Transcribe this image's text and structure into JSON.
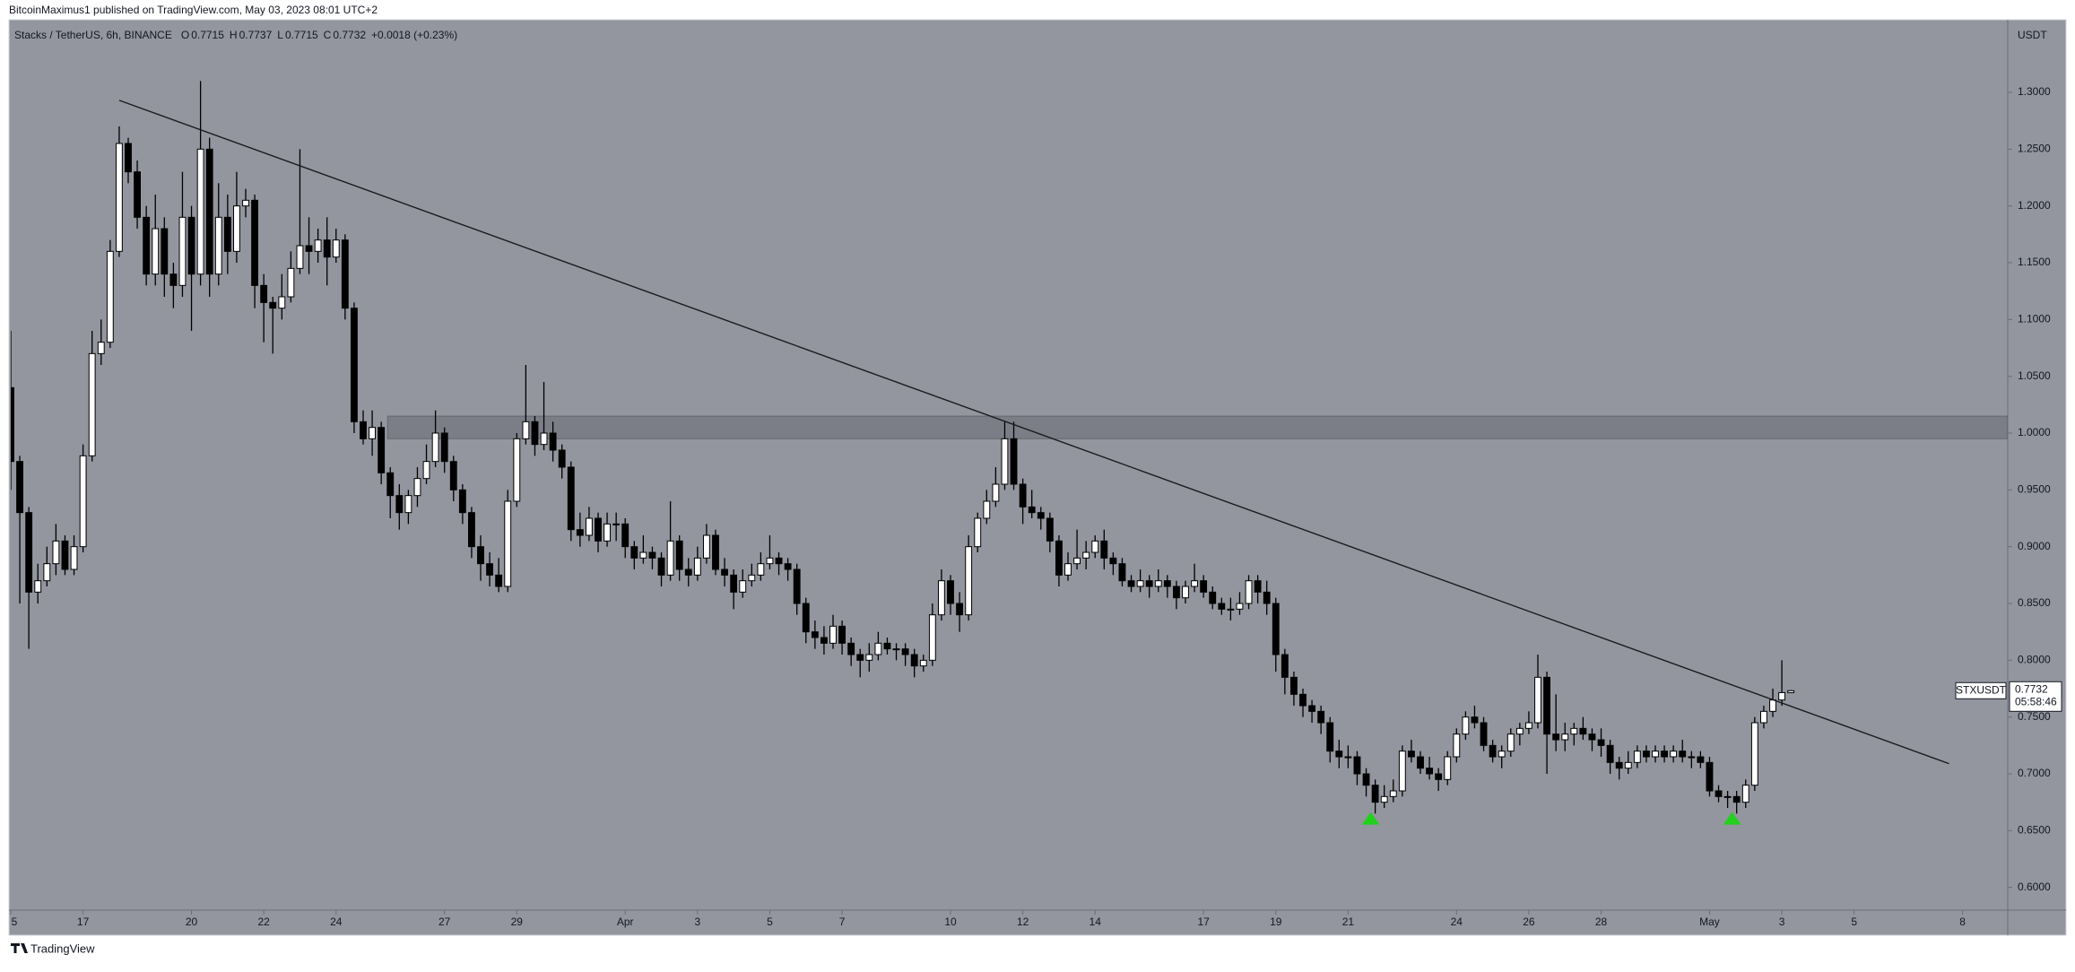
{
  "page": {
    "byline": "BitcoinMaximus1 published on TradingView.com, May 03, 2023 08:01 UTC+2",
    "brand": "TradingView"
  },
  "chart_data": {
    "type": "candlestick",
    "title": "Stacks / TetherUS, 6h, BINANCE",
    "ohlc_letters": [
      "O",
      "H",
      "L",
      "C"
    ],
    "change": "+0.0018 (+0.23%)",
    "currency": "USDT",
    "symbol": "STXUSDT",
    "countdown": "05:58:46",
    "up_color": "#ffffff",
    "down_color": "#000000",
    "background": "#93969e",
    "marker_color": "#22d11c",
    "candles": [
      [
        1.04,
        1.09,
        0.95,
        0.975
      ],
      [
        0.975,
        0.98,
        0.85,
        0.93
      ],
      [
        0.93,
        0.935,
        0.81,
        0.86
      ],
      [
        0.86,
        0.885,
        0.85,
        0.87
      ],
      [
        0.87,
        0.9,
        0.865,
        0.885
      ],
      [
        0.885,
        0.92,
        0.875,
        0.905
      ],
      [
        0.905,
        0.91,
        0.875,
        0.88
      ],
      [
        0.88,
        0.91,
        0.875,
        0.9
      ],
      [
        0.9,
        0.99,
        0.895,
        0.98
      ],
      [
        0.98,
        1.09,
        0.975,
        1.07
      ],
      [
        1.07,
        1.1,
        1.06,
        1.08
      ],
      [
        1.08,
        1.17,
        1.075,
        1.16
      ],
      [
        1.16,
        1.27,
        1.155,
        1.255
      ],
      [
        1.255,
        1.26,
        1.22,
        1.23
      ],
      [
        1.23,
        1.24,
        1.18,
        1.19
      ],
      [
        1.19,
        1.2,
        1.13,
        1.14
      ],
      [
        1.14,
        1.21,
        1.13,
        1.18
      ],
      [
        1.18,
        1.19,
        1.12,
        1.14
      ],
      [
        1.14,
        1.15,
        1.11,
        1.13
      ],
      [
        1.13,
        1.23,
        1.12,
        1.19
      ],
      [
        1.19,
        1.2,
        1.09,
        1.14
      ],
      [
        1.14,
        1.31,
        1.13,
        1.25
      ],
      [
        1.25,
        1.26,
        1.12,
        1.14
      ],
      [
        1.14,
        1.22,
        1.13,
        1.19
      ],
      [
        1.19,
        1.21,
        1.14,
        1.16
      ],
      [
        1.16,
        1.23,
        1.15,
        1.2
      ],
      [
        1.2,
        1.215,
        1.19,
        1.205
      ],
      [
        1.205,
        1.21,
        1.11,
        1.13
      ],
      [
        1.13,
        1.14,
        1.08,
        1.115
      ],
      [
        1.115,
        1.12,
        1.07,
        1.11
      ],
      [
        1.11,
        1.14,
        1.1,
        1.12
      ],
      [
        1.12,
        1.16,
        1.115,
        1.145
      ],
      [
        1.145,
        1.25,
        1.14,
        1.165
      ],
      [
        1.165,
        1.19,
        1.14,
        1.16
      ],
      [
        1.16,
        1.18,
        1.15,
        1.17
      ],
      [
        1.17,
        1.19,
        1.13,
        1.155
      ],
      [
        1.155,
        1.18,
        1.15,
        1.17
      ],
      [
        1.17,
        1.175,
        1.1,
        1.11
      ],
      [
        1.11,
        1.115,
        1.0,
        1.01
      ],
      [
        1.01,
        1.02,
        0.99,
        0.995
      ],
      [
        0.995,
        1.02,
        0.98,
        1.005
      ],
      [
        1.005,
        1.01,
        0.955,
        0.965
      ],
      [
        0.965,
        0.97,
        0.925,
        0.945
      ],
      [
        0.945,
        0.955,
        0.915,
        0.93
      ],
      [
        0.93,
        0.95,
        0.92,
        0.945
      ],
      [
        0.945,
        0.97,
        0.935,
        0.96
      ],
      [
        0.96,
        0.99,
        0.955,
        0.975
      ],
      [
        0.975,
        1.02,
        0.97,
        1.0
      ],
      [
        1.0,
        1.005,
        0.965,
        0.975
      ],
      [
        0.975,
        0.98,
        0.94,
        0.95
      ],
      [
        0.95,
        0.955,
        0.92,
        0.93
      ],
      [
        0.93,
        0.935,
        0.89,
        0.9
      ],
      [
        0.9,
        0.91,
        0.87,
        0.885
      ],
      [
        0.885,
        0.895,
        0.865,
        0.875
      ],
      [
        0.875,
        0.89,
        0.86,
        0.865
      ],
      [
        0.865,
        0.95,
        0.86,
        0.94
      ],
      [
        0.94,
        1.0,
        0.935,
        0.995
      ],
      [
        0.995,
        1.06,
        0.99,
        1.01
      ],
      [
        1.01,
        1.015,
        0.98,
        0.99
      ],
      [
        0.99,
        1.045,
        0.985,
        1.0
      ],
      [
        1.0,
        1.01,
        0.975,
        0.985
      ],
      [
        0.985,
        0.99,
        0.96,
        0.97
      ],
      [
        0.97,
        0.975,
        0.905,
        0.915
      ],
      [
        0.915,
        0.93,
        0.9,
        0.91
      ],
      [
        0.91,
        0.935,
        0.905,
        0.925
      ],
      [
        0.925,
        0.93,
        0.895,
        0.905
      ],
      [
        0.905,
        0.93,
        0.9,
        0.92
      ],
      [
        0.92,
        0.93,
        0.905,
        0.92
      ],
      [
        0.92,
        0.925,
        0.89,
        0.9
      ],
      [
        0.9,
        0.905,
        0.88,
        0.89
      ],
      [
        0.89,
        0.91,
        0.885,
        0.895
      ],
      [
        0.895,
        0.9,
        0.88,
        0.89
      ],
      [
        0.89,
        0.895,
        0.865,
        0.875
      ],
      [
        0.875,
        0.94,
        0.87,
        0.905
      ],
      [
        0.905,
        0.91,
        0.87,
        0.88
      ],
      [
        0.88,
        0.89,
        0.865,
        0.875
      ],
      [
        0.875,
        0.9,
        0.87,
        0.89
      ],
      [
        0.89,
        0.92,
        0.885,
        0.91
      ],
      [
        0.91,
        0.915,
        0.875,
        0.88
      ],
      [
        0.88,
        0.89,
        0.865,
        0.875
      ],
      [
        0.875,
        0.88,
        0.845,
        0.86
      ],
      [
        0.86,
        0.88,
        0.855,
        0.87
      ],
      [
        0.87,
        0.885,
        0.865,
        0.875
      ],
      [
        0.875,
        0.895,
        0.87,
        0.885
      ],
      [
        0.885,
        0.91,
        0.88,
        0.89
      ],
      [
        0.89,
        0.895,
        0.875,
        0.885
      ],
      [
        0.885,
        0.89,
        0.87,
        0.88
      ],
      [
        0.88,
        0.885,
        0.84,
        0.85
      ],
      [
        0.85,
        0.855,
        0.815,
        0.825
      ],
      [
        0.825,
        0.835,
        0.81,
        0.82
      ],
      [
        0.82,
        0.83,
        0.805,
        0.815
      ],
      [
        0.815,
        0.84,
        0.81,
        0.83
      ],
      [
        0.83,
        0.835,
        0.805,
        0.815
      ],
      [
        0.815,
        0.82,
        0.795,
        0.805
      ],
      [
        0.805,
        0.81,
        0.785,
        0.8
      ],
      [
        0.8,
        0.815,
        0.79,
        0.805
      ],
      [
        0.805,
        0.825,
        0.8,
        0.815
      ],
      [
        0.815,
        0.82,
        0.805,
        0.81
      ],
      [
        0.81,
        0.815,
        0.8,
        0.81
      ],
      [
        0.81,
        0.815,
        0.795,
        0.805
      ],
      [
        0.805,
        0.81,
        0.785,
        0.795
      ],
      [
        0.795,
        0.805,
        0.79,
        0.8
      ],
      [
        0.8,
        0.85,
        0.795,
        0.84
      ],
      [
        0.84,
        0.88,
        0.835,
        0.87
      ],
      [
        0.87,
        0.875,
        0.84,
        0.85
      ],
      [
        0.85,
        0.86,
        0.825,
        0.84
      ],
      [
        0.84,
        0.91,
        0.835,
        0.9
      ],
      [
        0.9,
        0.93,
        0.895,
        0.925
      ],
      [
        0.925,
        0.95,
        0.92,
        0.94
      ],
      [
        0.94,
        0.97,
        0.935,
        0.955
      ],
      [
        0.955,
        1.01,
        0.95,
        0.995
      ],
      [
        0.995,
        1.01,
        0.95,
        0.955
      ],
      [
        0.955,
        0.96,
        0.92,
        0.935
      ],
      [
        0.935,
        0.95,
        0.925,
        0.93
      ],
      [
        0.93,
        0.935,
        0.915,
        0.925
      ],
      [
        0.925,
        0.93,
        0.895,
        0.905
      ],
      [
        0.905,
        0.91,
        0.865,
        0.875
      ],
      [
        0.875,
        0.895,
        0.87,
        0.885
      ],
      [
        0.885,
        0.915,
        0.88,
        0.89
      ],
      [
        0.89,
        0.905,
        0.88,
        0.895
      ],
      [
        0.895,
        0.91,
        0.89,
        0.905
      ],
      [
        0.905,
        0.915,
        0.88,
        0.89
      ],
      [
        0.89,
        0.895,
        0.875,
        0.885
      ],
      [
        0.885,
        0.89,
        0.865,
        0.87
      ],
      [
        0.87,
        0.875,
        0.86,
        0.865
      ],
      [
        0.865,
        0.88,
        0.86,
        0.87
      ],
      [
        0.87,
        0.875,
        0.855,
        0.865
      ],
      [
        0.865,
        0.88,
        0.86,
        0.87
      ],
      [
        0.87,
        0.875,
        0.855,
        0.865
      ],
      [
        0.865,
        0.87,
        0.845,
        0.855
      ],
      [
        0.855,
        0.87,
        0.85,
        0.865
      ],
      [
        0.865,
        0.885,
        0.86,
        0.87
      ],
      [
        0.87,
        0.875,
        0.855,
        0.86
      ],
      [
        0.86,
        0.865,
        0.845,
        0.85
      ],
      [
        0.85,
        0.855,
        0.84,
        0.845
      ],
      [
        0.845,
        0.855,
        0.835,
        0.845
      ],
      [
        0.845,
        0.86,
        0.84,
        0.85
      ],
      [
        0.85,
        0.875,
        0.845,
        0.87
      ],
      [
        0.87,
        0.875,
        0.85,
        0.86
      ],
      [
        0.86,
        0.87,
        0.84,
        0.85
      ],
      [
        0.85,
        0.855,
        0.79,
        0.805
      ],
      [
        0.805,
        0.81,
        0.77,
        0.785
      ],
      [
        0.785,
        0.79,
        0.76,
        0.77
      ],
      [
        0.77,
        0.775,
        0.75,
        0.76
      ],
      [
        0.76,
        0.765,
        0.745,
        0.755
      ],
      [
        0.755,
        0.76,
        0.735,
        0.745
      ],
      [
        0.745,
        0.75,
        0.71,
        0.72
      ],
      [
        0.72,
        0.73,
        0.705,
        0.715
      ],
      [
        0.715,
        0.725,
        0.705,
        0.715
      ],
      [
        0.715,
        0.72,
        0.69,
        0.7
      ],
      [
        0.7,
        0.705,
        0.68,
        0.69
      ],
      [
        0.69,
        0.695,
        0.665,
        0.675
      ],
      [
        0.675,
        0.69,
        0.67,
        0.68
      ],
      [
        0.68,
        0.695,
        0.675,
        0.685
      ],
      [
        0.685,
        0.725,
        0.68,
        0.72
      ],
      [
        0.72,
        0.73,
        0.71,
        0.715
      ],
      [
        0.715,
        0.72,
        0.7,
        0.705
      ],
      [
        0.705,
        0.715,
        0.695,
        0.7
      ],
      [
        0.7,
        0.705,
        0.685,
        0.695
      ],
      [
        0.695,
        0.72,
        0.69,
        0.715
      ],
      [
        0.715,
        0.74,
        0.71,
        0.735
      ],
      [
        0.735,
        0.755,
        0.73,
        0.75
      ],
      [
        0.75,
        0.76,
        0.74,
        0.745
      ],
      [
        0.745,
        0.75,
        0.72,
        0.725
      ],
      [
        0.725,
        0.73,
        0.71,
        0.715
      ],
      [
        0.715,
        0.725,
        0.705,
        0.72
      ],
      [
        0.72,
        0.74,
        0.715,
        0.735
      ],
      [
        0.735,
        0.745,
        0.725,
        0.74
      ],
      [
        0.74,
        0.755,
        0.735,
        0.745
      ],
      [
        0.745,
        0.805,
        0.74,
        0.785
      ],
      [
        0.785,
        0.79,
        0.7,
        0.735
      ],
      [
        0.735,
        0.77,
        0.72,
        0.73
      ],
      [
        0.73,
        0.745,
        0.72,
        0.735
      ],
      [
        0.735,
        0.745,
        0.725,
        0.74
      ],
      [
        0.74,
        0.75,
        0.73,
        0.735
      ],
      [
        0.735,
        0.74,
        0.72,
        0.73
      ],
      [
        0.73,
        0.74,
        0.715,
        0.725
      ],
      [
        0.725,
        0.73,
        0.7,
        0.71
      ],
      [
        0.71,
        0.715,
        0.695,
        0.705
      ],
      [
        0.705,
        0.72,
        0.7,
        0.71
      ],
      [
        0.71,
        0.725,
        0.705,
        0.72
      ],
      [
        0.72,
        0.725,
        0.71,
        0.715
      ],
      [
        0.715,
        0.725,
        0.71,
        0.72
      ],
      [
        0.72,
        0.725,
        0.71,
        0.715
      ],
      [
        0.715,
        0.725,
        0.71,
        0.72
      ],
      [
        0.72,
        0.73,
        0.71,
        0.715
      ],
      [
        0.715,
        0.72,
        0.705,
        0.715
      ],
      [
        0.715,
        0.72,
        0.705,
        0.71
      ],
      [
        0.71,
        0.715,
        0.68,
        0.685
      ],
      [
        0.685,
        0.69,
        0.675,
        0.68
      ],
      [
        0.68,
        0.685,
        0.67,
        0.68
      ],
      [
        0.68,
        0.685,
        0.665,
        0.675
      ],
      [
        0.675,
        0.695,
        0.67,
        0.69
      ],
      [
        0.69,
        0.75,
        0.685,
        0.745
      ],
      [
        0.745,
        0.76,
        0.74,
        0.755
      ],
      [
        0.755,
        0.775,
        0.75,
        0.765
      ],
      [
        0.765,
        0.8,
        0.76,
        0.7715
      ],
      [
        0.7715,
        0.7737,
        0.7715,
        0.7732
      ]
    ],
    "xlim": [
      0,
      221
    ],
    "xticks": [
      {
        "value": 0,
        "label": "5"
      },
      {
        "value": 8,
        "label": "17"
      },
      {
        "value": 20,
        "label": "20"
      },
      {
        "value": 28,
        "label": "22"
      },
      {
        "value": 36,
        "label": "24"
      },
      {
        "value": 48,
        "label": "27"
      },
      {
        "value": 56,
        "label": "29"
      },
      {
        "value": 68,
        "label": "Apr"
      },
      {
        "value": 76,
        "label": "3"
      },
      {
        "value": 84,
        "label": "5"
      },
      {
        "value": 92,
        "label": "7"
      },
      {
        "value": 104,
        "label": "10"
      },
      {
        "value": 112,
        "label": "12"
      },
      {
        "value": 120,
        "label": "14"
      },
      {
        "value": 132,
        "label": "17"
      },
      {
        "value": 140,
        "label": "19"
      },
      {
        "value": 148,
        "label": "21"
      },
      {
        "value": 160,
        "label": "24"
      },
      {
        "value": 168,
        "label": "26"
      },
      {
        "value": 176,
        "label": "28"
      },
      {
        "value": 188,
        "label": "May"
      },
      {
        "value": 196,
        "label": "3"
      },
      {
        "value": 204,
        "label": "5"
      },
      {
        "value": 216,
        "label": "8"
      }
    ],
    "ylim": [
      0.58,
      1.36
    ],
    "yticks": [
      {
        "value": 0.6,
        "label": "0.6000"
      },
      {
        "value": 0.65,
        "label": "0.6500"
      },
      {
        "value": 0.7,
        "label": "0.7000"
      },
      {
        "value": 0.75,
        "label": "0.7500"
      },
      {
        "value": 0.8,
        "label": "0.8000"
      },
      {
        "value": 0.85,
        "label": "0.8500"
      },
      {
        "value": 0.9,
        "label": "0.9000"
      },
      {
        "value": 0.95,
        "label": "0.9500"
      },
      {
        "value": 1.0,
        "label": "1.0000"
      },
      {
        "value": 1.05,
        "label": "1.0500"
      },
      {
        "value": 1.1,
        "label": "1.1000"
      },
      {
        "value": 1.15,
        "label": "1.1500"
      },
      {
        "value": 1.2,
        "label": "1.2000"
      },
      {
        "value": 1.25,
        "label": "1.2500"
      },
      {
        "value": 1.3,
        "label": "1.3000"
      }
    ],
    "trendline": [
      [
        12,
        1.293
      ],
      [
        214.5,
        0.709
      ]
    ],
    "zone": {
      "x": [
        41.7,
        221
      ],
      "y": [
        0.995,
        1.015
      ]
    },
    "markers": [
      {
        "x": 150.5,
        "y": 0.66
      },
      {
        "x": 190.5,
        "y": 0.66
      }
    ]
  }
}
